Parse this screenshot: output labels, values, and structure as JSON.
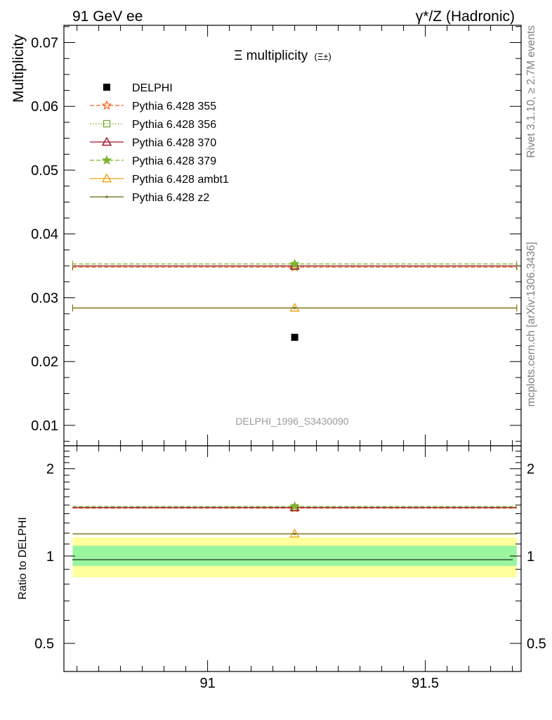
{
  "header": {
    "left": "91 GeV ee",
    "right": "γ*/Z (Hadronic)"
  },
  "title": {
    "main": "Ξ multiplicity",
    "sub": "(Ξ±)"
  },
  "side_labels": {
    "rivet": "Rivet 3.1.10, ≥ 2.7M events",
    "source": "mcplots.cern.ch [arXiv:1306.3436]"
  },
  "watermark": "DELPHI_1996_S3430090",
  "colors": {
    "delphi": "#000000",
    "p355": "#f26522",
    "p356": "#7aa52a",
    "p370": "#a0142c",
    "p379": "#7ab62e",
    "ambt1": "#f0a21a",
    "z2": "#6b6b12",
    "band_inner": "#99f59e",
    "band_outer": "#ffff9e"
  },
  "chart_data": [
    {
      "type": "scatter",
      "panel": "main",
      "ylabel": "Multiplicity",
      "xlim": [
        90.67,
        91.72
      ],
      "ylim": [
        0.0068,
        0.0727
      ],
      "yticks": [
        0.01,
        0.02,
        0.03,
        0.04,
        0.05,
        0.06,
        0.07
      ],
      "yticklabels": [
        "0.01",
        "0.02",
        "0.03",
        "0.04",
        "0.05",
        "0.06",
        "0.07"
      ],
      "x_range": [
        90.69,
        91.71
      ],
      "x": 91.2,
      "legend_position": "top-left",
      "series": [
        {
          "name": "DELPHI",
          "value": 0.0238,
          "marker": "filled-square",
          "line": "none",
          "color": "#000000"
        },
        {
          "name": "Pythia 6.428 355",
          "value": 0.0348,
          "marker": "open-star",
          "line": "dashed",
          "color": "#f26522"
        },
        {
          "name": "Pythia 6.428 356",
          "value": 0.0349,
          "marker": "open-square",
          "line": "dotted",
          "color": "#7aa52a"
        },
        {
          "name": "Pythia 6.428 370",
          "value": 0.035,
          "marker": "open-triangle",
          "line": "solid",
          "color": "#a0142c"
        },
        {
          "name": "Pythia 6.428 379",
          "value": 0.0353,
          "marker": "filled-star",
          "line": "dashed",
          "color": "#7ab62e"
        },
        {
          "name": "Pythia 6.428 ambt1",
          "value": 0.0284,
          "marker": "open-triangle",
          "line": "solid",
          "color": "#f0a21a"
        },
        {
          "name": "Pythia 6.428 z2",
          "value": 0.0284,
          "marker": "dot",
          "line": "solid",
          "color": "#6b6b12"
        }
      ]
    },
    {
      "type": "scatter",
      "panel": "ratio",
      "ylabel": "Ratio to DELPHI",
      "xlim": [
        90.67,
        91.72
      ],
      "ylim": [
        0.4,
        2.4
      ],
      "yscale": "log",
      "yticks": [
        0.5,
        1,
        2
      ],
      "yticklabels": [
        "0.5",
        "1",
        "2"
      ],
      "xticks": [
        91,
        91.5
      ],
      "xticklabels": [
        "91",
        "91.5"
      ],
      "x_range": [
        90.69,
        91.71
      ],
      "x": 91.2,
      "bands": [
        {
          "lo": 0.845,
          "hi": 1.16,
          "kind": "outer"
        },
        {
          "lo": 0.925,
          "hi": 1.085,
          "kind": "inner"
        }
      ],
      "series": [
        {
          "name": "Pythia 6.428 355",
          "value": 1.463
        },
        {
          "name": "Pythia 6.428 356",
          "value": 1.467
        },
        {
          "name": "Pythia 6.428 370",
          "value": 1.47
        },
        {
          "name": "Pythia 6.428 379",
          "value": 1.483
        },
        {
          "name": "Pythia 6.428 ambt1",
          "value": 1.193
        },
        {
          "name": "Pythia 6.428 z2",
          "value": 1.193
        }
      ]
    }
  ]
}
